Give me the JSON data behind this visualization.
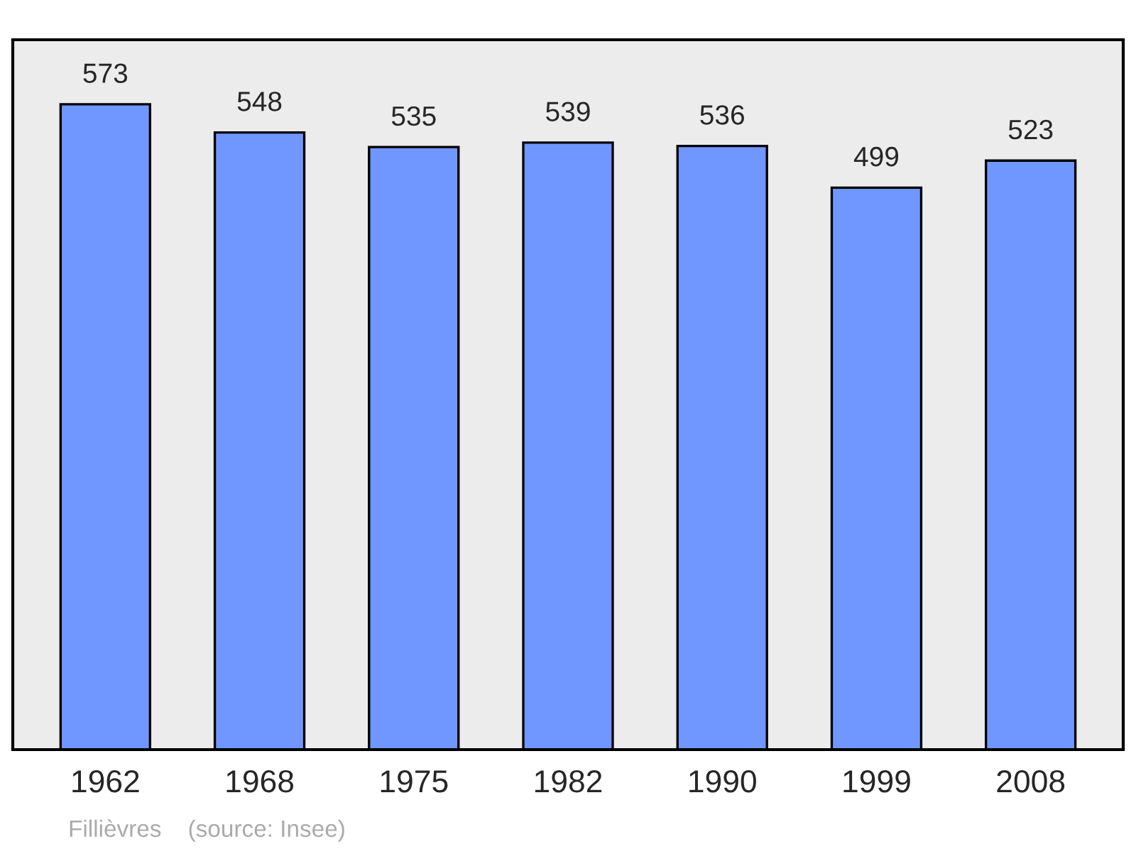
{
  "chart_data": {
    "type": "bar",
    "categories": [
      "1962",
      "1968",
      "1975",
      "1982",
      "1990",
      "1999",
      "2008"
    ],
    "values": [
      573,
      548,
      535,
      539,
      536,
      499,
      523
    ],
    "color": "#7096ff",
    "data_labels": true,
    "grid": false,
    "legend": false,
    "annotations": [
      "Fillièvres    (source: Insee)"
    ]
  }
}
